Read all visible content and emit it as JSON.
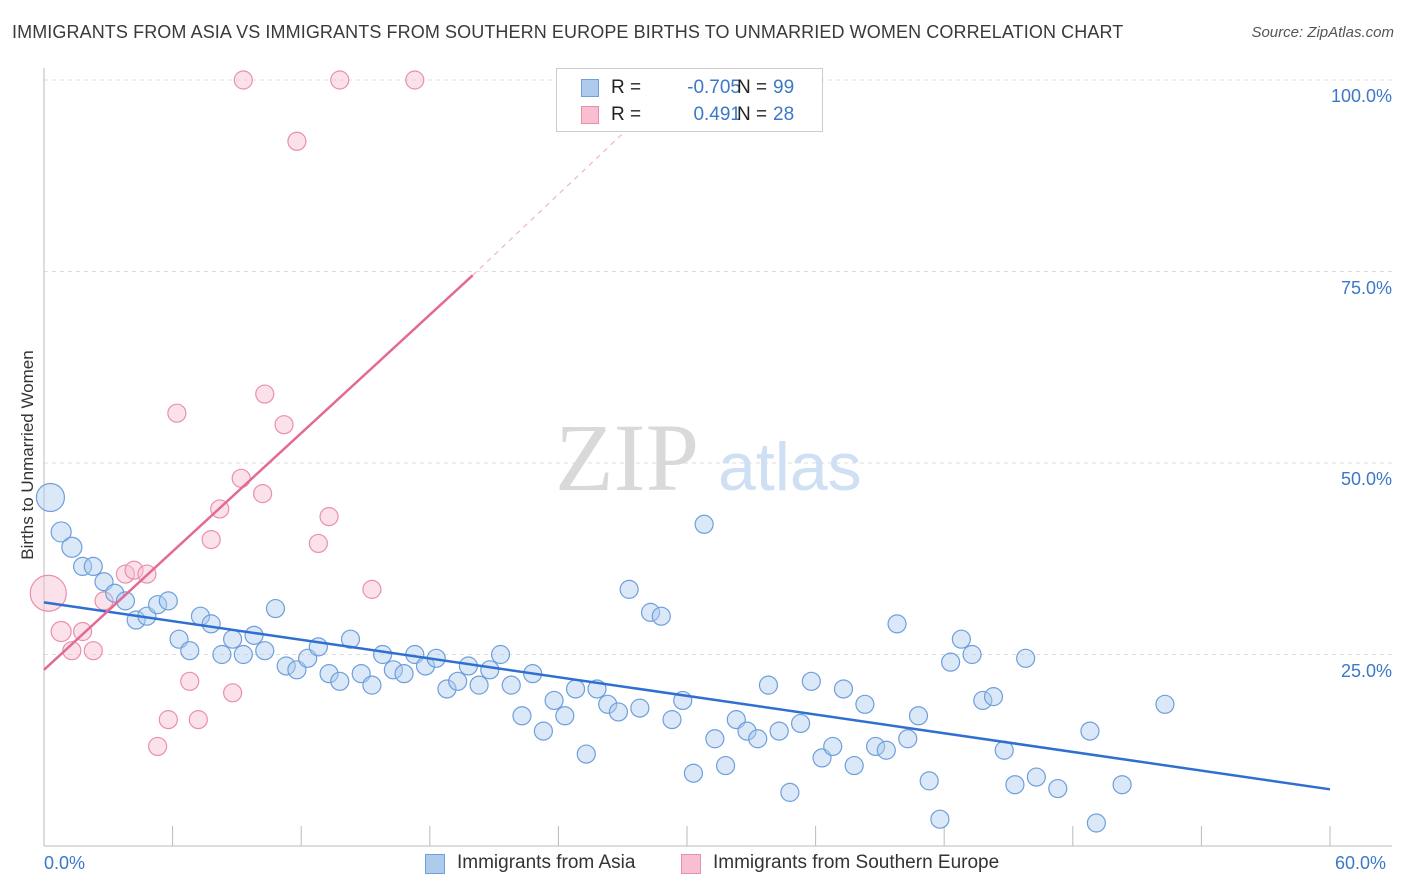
{
  "title": "IMMIGRANTS FROM ASIA VS IMMIGRANTS FROM SOUTHERN EUROPE BIRTHS TO UNMARRIED WOMEN CORRELATION CHART",
  "source": "Source: ZipAtlas.com",
  "watermark": {
    "zip": "ZIP",
    "atlas": "atlas"
  },
  "legend": {
    "r_label": "R =",
    "n_label": "N =",
    "rows": [
      {
        "series": "asia",
        "r": "-0.705",
        "n": "99"
      },
      {
        "series": "southern_europe",
        "r": "0.491",
        "n": "28"
      }
    ]
  },
  "colors": {
    "asia_fill": "#aecbee",
    "asia_stroke": "#6e9fdc",
    "asia_line": "#2f6fcf",
    "europe_fill": "#f7bfd0",
    "europe_stroke": "#ea8fab",
    "europe_line": "#e36a93",
    "grid": "#dddddd",
    "axis_text": "#3b78c9"
  },
  "chart_data": {
    "type": "scatter",
    "title": "IMMIGRANTS FROM ASIA VS IMMIGRANTS FROM SOUTHERN EUROPE BIRTHS TO UNMARRIED WOMEN CORRELATION CHART",
    "xlabel": "",
    "ylabel": "Births to Unmarried Women",
    "xlim": [
      0,
      60
    ],
    "ylim": [
      0,
      100
    ],
    "x_tick_labels": [
      "0.0%",
      "60.0%"
    ],
    "y_tick_labels": [
      {
        "value": 100,
        "label": "100.0%"
      },
      {
        "value": 75,
        "label": "75.0%"
      },
      {
        "value": 50,
        "label": "50.0%"
      },
      {
        "value": 25,
        "label": "25.0%"
      }
    ],
    "series": [
      {
        "name": "Immigrants from Asia",
        "key": "asia",
        "trend": {
          "x1": 0,
          "y1": 31.8,
          "x2": 60,
          "y2": 7.4
        },
        "points": [
          [
            0.3,
            45.5,
            14
          ],
          [
            0.8,
            41,
            10
          ],
          [
            1.3,
            39,
            10
          ],
          [
            1.8,
            36.5,
            9
          ],
          [
            2.3,
            36.5,
            9
          ],
          [
            2.8,
            34.5,
            9
          ],
          [
            3.3,
            33,
            9
          ],
          [
            3.8,
            32,
            9
          ],
          [
            4.3,
            29.5,
            9
          ],
          [
            4.8,
            30,
            9
          ],
          [
            5.3,
            31.5,
            9
          ],
          [
            5.8,
            32,
            9
          ],
          [
            6.3,
            27,
            9
          ],
          [
            6.8,
            25.5,
            9
          ],
          [
            7.3,
            30,
            9
          ],
          [
            7.8,
            29,
            9
          ],
          [
            8.3,
            25,
            9
          ],
          [
            8.8,
            27,
            9
          ],
          [
            9.3,
            25,
            9
          ],
          [
            9.8,
            27.5,
            9
          ],
          [
            10.3,
            25.5,
            9
          ],
          [
            10.8,
            31,
            9
          ],
          [
            11.3,
            23.5,
            9
          ],
          [
            11.8,
            23,
            9
          ],
          [
            12.3,
            24.5,
            9
          ],
          [
            12.8,
            26,
            9
          ],
          [
            13.3,
            22.5,
            9
          ],
          [
            13.8,
            21.5,
            9
          ],
          [
            14.3,
            27,
            9
          ],
          [
            14.8,
            22.5,
            9
          ],
          [
            15.3,
            21,
            9
          ],
          [
            15.8,
            25,
            9
          ],
          [
            16.3,
            23,
            9
          ],
          [
            16.8,
            22.5,
            9
          ],
          [
            17.3,
            25,
            9
          ],
          [
            17.8,
            23.5,
            9
          ],
          [
            18.3,
            24.5,
            9
          ],
          [
            18.8,
            20.5,
            9
          ],
          [
            19.3,
            21.5,
            9
          ],
          [
            19.8,
            23.5,
            9
          ],
          [
            20.3,
            21,
            9
          ],
          [
            20.8,
            23,
            9
          ],
          [
            21.3,
            25,
            9
          ],
          [
            21.8,
            21,
            9
          ],
          [
            22.3,
            17,
            9
          ],
          [
            22.8,
            22.5,
            9
          ],
          [
            23.3,
            15,
            9
          ],
          [
            23.8,
            19,
            9
          ],
          [
            24.3,
            17,
            9
          ],
          [
            24.8,
            20.5,
            9
          ],
          [
            25.3,
            12,
            9
          ],
          [
            25.8,
            20.5,
            9
          ],
          [
            26.3,
            18.5,
            9
          ],
          [
            26.8,
            17.5,
            9
          ],
          [
            27.3,
            33.5,
            9
          ],
          [
            27.8,
            18,
            9
          ],
          [
            28.3,
            30.5,
            9
          ],
          [
            28.8,
            30,
            9
          ],
          [
            29.3,
            16.5,
            9
          ],
          [
            29.8,
            19,
            9
          ],
          [
            30.3,
            9.5,
            9
          ],
          [
            30.8,
            42,
            9
          ],
          [
            31.3,
            14,
            9
          ],
          [
            31.8,
            10.5,
            9
          ],
          [
            32.3,
            16.5,
            9
          ],
          [
            32.8,
            15,
            9
          ],
          [
            33.3,
            14,
            9
          ],
          [
            33.8,
            21,
            9
          ],
          [
            34.3,
            15,
            9
          ],
          [
            34.8,
            7,
            9
          ],
          [
            35.3,
            16,
            9
          ],
          [
            35.8,
            21.5,
            9
          ],
          [
            36.3,
            11.5,
            9
          ],
          [
            36.8,
            13,
            9
          ],
          [
            37.3,
            20.5,
            9
          ],
          [
            37.8,
            10.5,
            9
          ],
          [
            38.3,
            18.5,
            9
          ],
          [
            38.8,
            13,
            9
          ],
          [
            39.3,
            12.5,
            9
          ],
          [
            39.8,
            29,
            9
          ],
          [
            40.3,
            14,
            9
          ],
          [
            40.8,
            17,
            9
          ],
          [
            41.3,
            8.5,
            9
          ],
          [
            41.8,
            3.5,
            9
          ],
          [
            42.3,
            24,
            9
          ],
          [
            42.8,
            27,
            9
          ],
          [
            43.3,
            25,
            9
          ],
          [
            43.8,
            19,
            9
          ],
          [
            44.3,
            19.5,
            9
          ],
          [
            44.8,
            12.5,
            9
          ],
          [
            45.3,
            8,
            9
          ],
          [
            45.8,
            24.5,
            9
          ],
          [
            46.3,
            9,
            9
          ],
          [
            47.3,
            7.5,
            9
          ],
          [
            48.8,
            15,
            9
          ],
          [
            49.1,
            3,
            9
          ],
          [
            50.3,
            8,
            9
          ],
          [
            52.3,
            18.5,
            9
          ]
        ]
      },
      {
        "name": "Immigrants from Southern Europe",
        "key": "southern_europe",
        "trend": {
          "x1": 0,
          "y1": 23,
          "x2": 20,
          "y2": 74.5
        },
        "trend_dashed": {
          "x1": 20,
          "y1": 74.5,
          "x2": 27,
          "y2": 93
        },
        "points": [
          [
            0.2,
            33,
            18
          ],
          [
            0.8,
            28,
            10
          ],
          [
            1.3,
            25.5,
            9
          ],
          [
            1.8,
            28,
            9
          ],
          [
            2.3,
            25.5,
            9
          ],
          [
            2.8,
            32,
            9
          ],
          [
            3.8,
            35.5,
            9
          ],
          [
            4.2,
            36,
            9
          ],
          [
            4.8,
            35.5,
            9
          ],
          [
            5.3,
            13,
            9
          ],
          [
            5.8,
            16.5,
            9
          ],
          [
            6.2,
            56.5,
            9
          ],
          [
            6.8,
            21.5,
            9
          ],
          [
            7.2,
            16.5,
            9
          ],
          [
            7.8,
            40,
            9
          ],
          [
            8.2,
            44,
            9
          ],
          [
            8.8,
            20,
            9
          ],
          [
            9.2,
            48,
            9
          ],
          [
            10.2,
            46,
            9
          ],
          [
            10.3,
            59,
            9
          ],
          [
            11.2,
            55,
            9
          ],
          [
            11.8,
            92,
            9
          ],
          [
            12.8,
            39.5,
            9
          ],
          [
            13.3,
            43,
            9
          ],
          [
            15.3,
            33.5,
            9
          ],
          [
            9.3,
            100,
            9
          ],
          [
            13.8,
            100,
            9
          ],
          [
            17.3,
            100,
            9
          ]
        ]
      }
    ]
  },
  "bottom_legend": [
    "Immigrants from Asia",
    "Immigrants from Southern Europe"
  ]
}
